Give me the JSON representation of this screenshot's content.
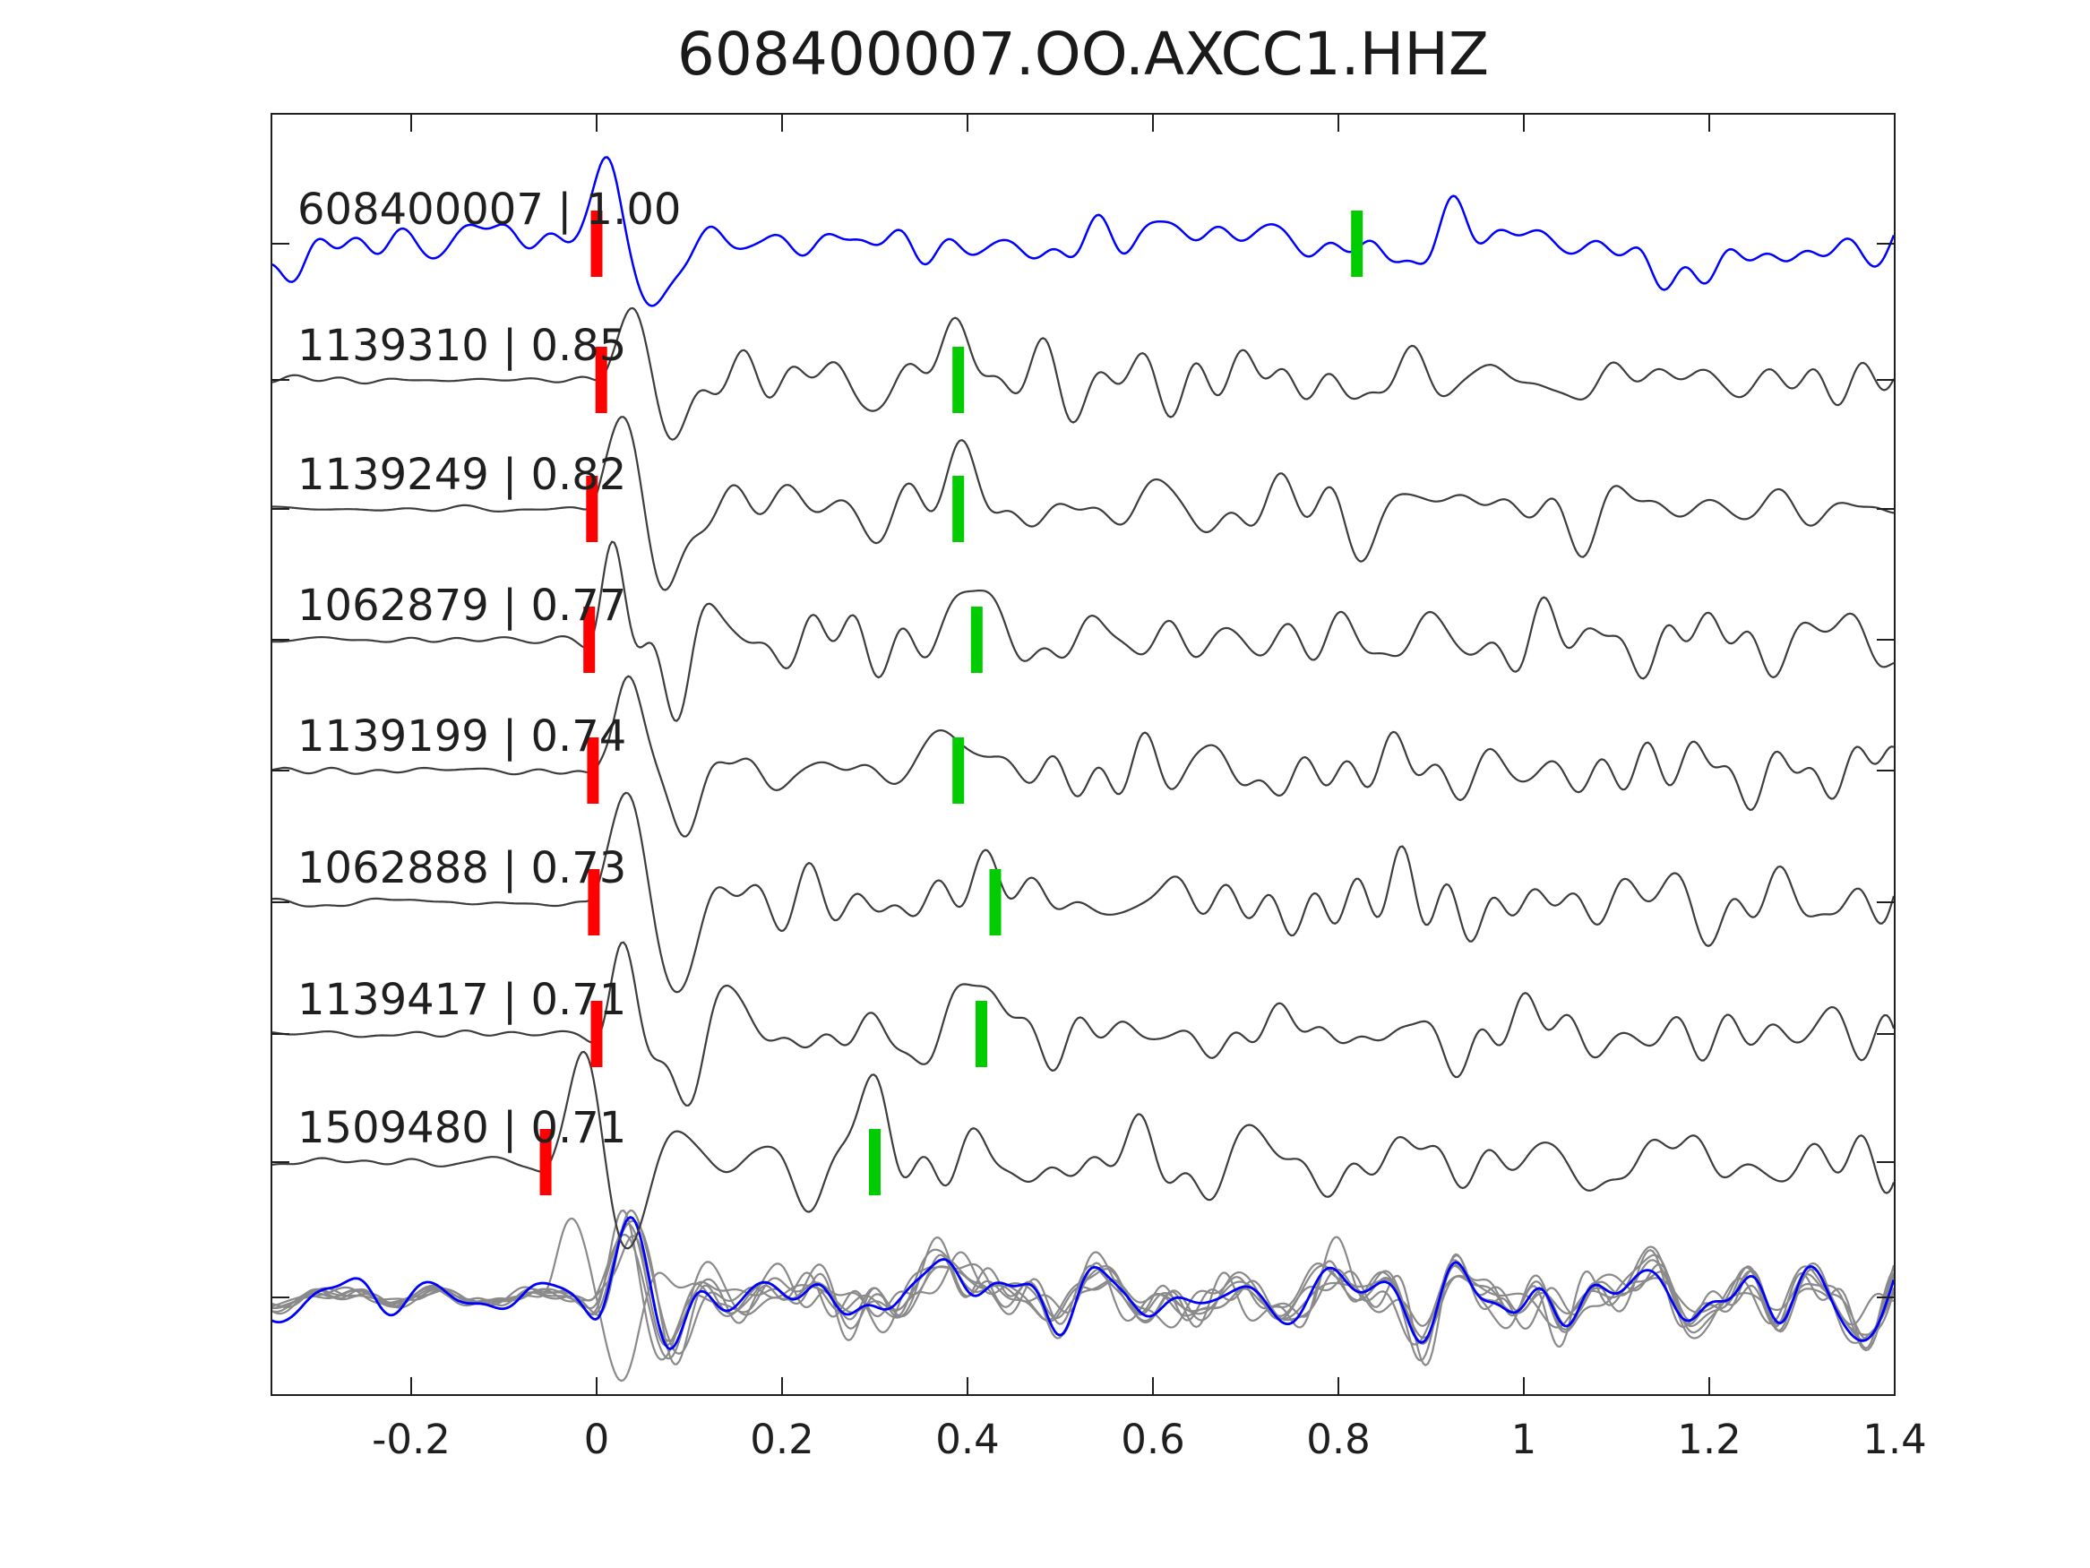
{
  "title": "608400007.OO.AXCC1.HHZ",
  "chart_data": {
    "type": "line",
    "title": "608400007.OO.AXCC1.HHZ",
    "description": "Matched-filter seismic detection plot: template waveform (blue, top) and seven detection waveforms (dark gray) labelled 'event_id | correlation', each with a red pick bar near t=0 and a green pick bar; bottom row overlays all detections (gray) with the template (blue).",
    "grid": false,
    "legend": "none",
    "x_axis": {
      "label": "",
      "range": [
        -0.351,
        1.4
      ],
      "tick_values": [
        -0.2,
        0,
        0.2,
        0.4,
        0.6,
        0.8,
        1,
        1.2,
        1.4
      ],
      "tick_labels": [
        "-0.2",
        "0",
        "0.2",
        "0.4",
        "0.6",
        "0.8",
        "1",
        "1.2",
        "1.4"
      ]
    },
    "y_axis": {
      "label": "",
      "tick_labels": []
    },
    "colors": {
      "template": "#0000ff",
      "detection": "#3d3d3d",
      "overlay_gray": "#8a8a8a",
      "pick_red": "#ff0000",
      "pick_green": "#00cc00",
      "axis": "#1f1f1f",
      "text": "#1a1a1a"
    },
    "traces": [
      {
        "row": 0,
        "label": "608400007 | 1.00",
        "event_id": "608400007",
        "correlation": 1.0,
        "kind": "template",
        "red_pick_t": 0.0,
        "green_pick_t": 0.82
      },
      {
        "row": 1,
        "label": "1139310 | 0.85",
        "event_id": "1139310",
        "correlation": 0.85,
        "kind": "detection",
        "red_pick_t": 0.005,
        "green_pick_t": 0.39
      },
      {
        "row": 2,
        "label": "1139249 | 0.82",
        "event_id": "1139249",
        "correlation": 0.82,
        "kind": "detection",
        "red_pick_t": -0.005,
        "green_pick_t": 0.39
      },
      {
        "row": 3,
        "label": "1062879 | 0.77",
        "event_id": "1062879",
        "correlation": 0.77,
        "kind": "detection",
        "red_pick_t": -0.008,
        "green_pick_t": 0.41
      },
      {
        "row": 4,
        "label": "1139199 | 0.74",
        "event_id": "1139199",
        "correlation": 0.74,
        "kind": "detection",
        "red_pick_t": -0.004,
        "green_pick_t": 0.39
      },
      {
        "row": 5,
        "label": "1062888 | 0.73",
        "event_id": "1062888",
        "correlation": 0.73,
        "kind": "detection",
        "red_pick_t": -0.003,
        "green_pick_t": 0.43
      },
      {
        "row": 6,
        "label": "1139417 | 0.71",
        "event_id": "1139417",
        "correlation": 0.71,
        "kind": "detection",
        "red_pick_t": 0.0,
        "green_pick_t": 0.415
      },
      {
        "row": 7,
        "label": "1509480 | 0.71",
        "event_id": "1509480",
        "correlation": 0.71,
        "kind": "detection",
        "red_pick_t": -0.055,
        "green_pick_t": 0.3
      },
      {
        "row": 8,
        "label": "",
        "kind": "overlay-stack"
      }
    ]
  }
}
